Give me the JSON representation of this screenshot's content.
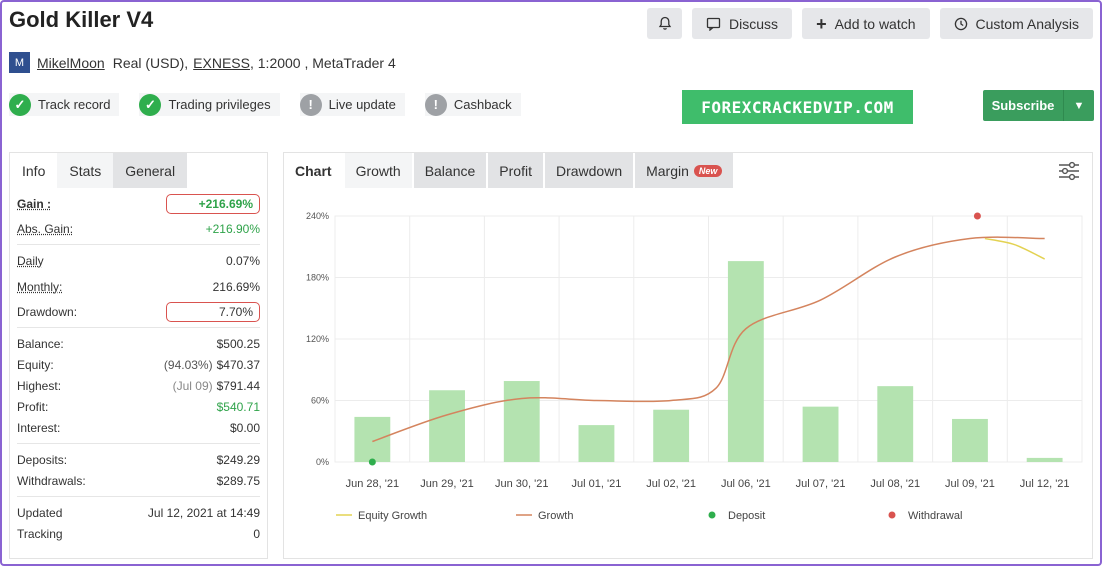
{
  "header": {
    "title": "Gold Killer V4",
    "buttons": {
      "discuss": "Discuss",
      "add_watch": "Add to watch",
      "custom": "Custom Analysis"
    }
  },
  "account": {
    "avatar_letter": "M",
    "user": "MikelMoon",
    "type": "Real (USD),",
    "broker": "EXNESS",
    "details": ", 1:2000 , MetaTrader 4"
  },
  "badges": [
    {
      "label": "Track record",
      "icon": "check-icon",
      "symbol": "✓"
    },
    {
      "label": "Trading privileges",
      "icon": "check-icon",
      "symbol": "✓"
    },
    {
      "label": "Live update",
      "icon": "warning-icon",
      "symbol": "!"
    },
    {
      "label": "Cashback",
      "icon": "warning-icon",
      "symbol": "!"
    }
  ],
  "watermark": "FOREXCRACKEDVIP.COM",
  "subscribe": {
    "label": "Subscribe"
  },
  "left_tabs": [
    "Info",
    "Stats",
    "General"
  ],
  "stats": {
    "gain": {
      "label": "Gain :",
      "value": "+216.69%"
    },
    "abs_gain": {
      "label": "Abs. Gain:",
      "value": "+216.90%"
    },
    "daily": {
      "label": "Daily",
      "value": "0.07%"
    },
    "monthly": {
      "label": "Monthly:",
      "value": "216.69%"
    },
    "drawdown": {
      "label": "Drawdown:",
      "value": "7.70%"
    },
    "balance": {
      "label": "Balance:",
      "value": "$500.25"
    },
    "equity": {
      "label": "Equity:",
      "pct": "(94.03%)",
      "value": "$470.37"
    },
    "highest": {
      "label": "Highest:",
      "date": "(Jul 09)",
      "value": "$791.44"
    },
    "profit": {
      "label": "Profit:",
      "value": "$540.71"
    },
    "interest": {
      "label": "Interest:",
      "value": "$0.00"
    },
    "deposits": {
      "label": "Deposits:",
      "value": "$249.29"
    },
    "withdrawals": {
      "label": "Withdrawals:",
      "value": "$289.75"
    },
    "updated": {
      "label": "Updated",
      "value": "Jul 12, 2021 at 14:49"
    },
    "tracking": {
      "label": "Tracking",
      "value": "0"
    }
  },
  "right_tabs": {
    "chart": "Chart",
    "items": [
      "Growth",
      "Balance",
      "Profit",
      "Drawdown",
      "Margin"
    ],
    "new_badge": "New"
  },
  "colors": {
    "bar": "#b4e3b0",
    "growth": "#d4845e",
    "equity": "#e3d252",
    "deposit": "#2fae4d",
    "withdrawal": "#d9534f"
  },
  "chart_data": {
    "type": "bar",
    "categories": [
      "Jun 28, '21",
      "Jun 29, '21",
      "Jun 30, '21",
      "Jul 01, '21",
      "Jul 02, '21",
      "Jul 06, '21",
      "Jul 07, '21",
      "Jul 08, '21",
      "Jul 09, '21",
      "Jul 12, '21"
    ],
    "yticks": [
      "0%",
      "60%",
      "120%",
      "180%",
      "240%"
    ],
    "ylim": [
      0,
      240
    ],
    "bars": [
      44,
      70,
      79,
      36,
      51,
      196,
      54,
      74,
      42,
      4
    ],
    "growth": [
      [
        0,
        20
      ],
      [
        1,
        46
      ],
      [
        2,
        62
      ],
      [
        3,
        60
      ],
      [
        4,
        60
      ],
      [
        4.6,
        72
      ],
      [
        5,
        130
      ],
      [
        6,
        158
      ],
      [
        7,
        200
      ],
      [
        8,
        218
      ],
      [
        9,
        218
      ]
    ],
    "equity_growth": [
      [
        8.2,
        218
      ],
      [
        8.6,
        212
      ],
      [
        9,
        198
      ]
    ],
    "deposit": [
      [
        0,
        0
      ]
    ],
    "withdrawal": [
      [
        8.1,
        240
      ]
    ],
    "legend": [
      "Equity Growth",
      "Growth",
      "Deposit",
      "Withdrawal"
    ]
  }
}
